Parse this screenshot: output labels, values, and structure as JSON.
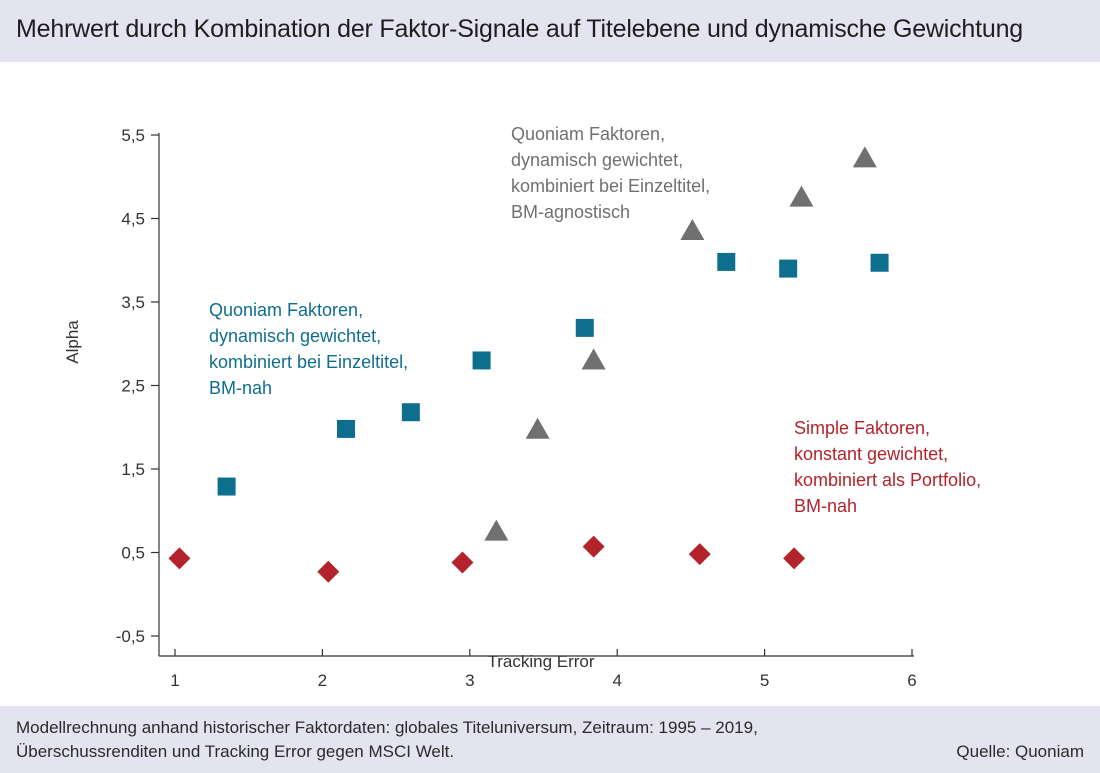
{
  "title": "Mehrwert durch Kombination der Faktor-Signale auf Titelebene und dynamische Gewichtung",
  "footer": {
    "note_line1": "Modellrechnung anhand historischer Faktordaten: globales Titeluniversum, Zeitraum: 1995 – 2019,",
    "note_line2": "Überschussrenditen und Tracking Error gegen MSCI Welt.",
    "source": "Quelle: Quoniam"
  },
  "chart_data": {
    "type": "scatter",
    "xlabel": "Tracking Error",
    "ylabel": "Alpha",
    "xlim": [
      1,
      6
    ],
    "ylim": [
      -0.5,
      5.5
    ],
    "x_ticks": [
      {
        "value": 1,
        "label": "1"
      },
      {
        "value": 2,
        "label": "2"
      },
      {
        "value": 3,
        "label": "3"
      },
      {
        "value": 4,
        "label": "4"
      },
      {
        "value": 5,
        "label": "5"
      },
      {
        "value": 6,
        "label": "6"
      }
    ],
    "y_ticks": [
      {
        "value": -0.5,
        "label": "-0,5"
      },
      {
        "value": 0.5,
        "label": "0,5"
      },
      {
        "value": 1.5,
        "label": "1,5"
      },
      {
        "value": 2.5,
        "label": "2,5"
      },
      {
        "value": 3.5,
        "label": "3,5"
      },
      {
        "value": 4.5,
        "label": "4,5"
      },
      {
        "value": 5.5,
        "label": "5,5"
      }
    ],
    "grid": false,
    "series": [
      {
        "label_lines": [
          "Quoniam Faktoren,",
          "dynamisch gewichtet,",
          "kombiniert bei Einzeltitel,",
          "BM-agnostisch"
        ],
        "marker": "triangle",
        "color": "#707070",
        "points": [
          {
            "x": 3.18,
            "y": 0.75
          },
          {
            "x": 3.46,
            "y": 1.97
          },
          {
            "x": 3.84,
            "y": 2.8
          },
          {
            "x": 4.51,
            "y": 4.35
          },
          {
            "x": 5.25,
            "y": 4.75
          },
          {
            "x": 5.68,
            "y": 5.22
          }
        ]
      },
      {
        "label_lines": [
          "Quoniam Faktoren,",
          "dynamisch gewichtet,",
          "kombiniert bei Einzeltitel,",
          "BM-nah"
        ],
        "marker": "square",
        "color": "#0e6e8e",
        "points": [
          {
            "x": 1.35,
            "y": 1.29
          },
          {
            "x": 2.16,
            "y": 1.98
          },
          {
            "x": 2.6,
            "y": 2.18
          },
          {
            "x": 3.08,
            "y": 2.8
          },
          {
            "x": 3.78,
            "y": 3.19
          },
          {
            "x": 4.74,
            "y": 3.98
          },
          {
            "x": 5.16,
            "y": 3.9
          },
          {
            "x": 5.78,
            "y": 3.97
          }
        ]
      },
      {
        "label_lines": [
          "Simple Faktoren,",
          "konstant gewichtet,",
          "kombiniert als Portfolio,",
          "BM-nah"
        ],
        "marker": "diamond",
        "color": "#b3232c",
        "points": [
          {
            "x": 1.03,
            "y": 0.43
          },
          {
            "x": 2.04,
            "y": 0.27
          },
          {
            "x": 2.95,
            "y": 0.38
          },
          {
            "x": 3.84,
            "y": 0.57
          },
          {
            "x": 4.56,
            "y": 0.48
          },
          {
            "x": 5.2,
            "y": 0.43
          }
        ]
      }
    ]
  }
}
